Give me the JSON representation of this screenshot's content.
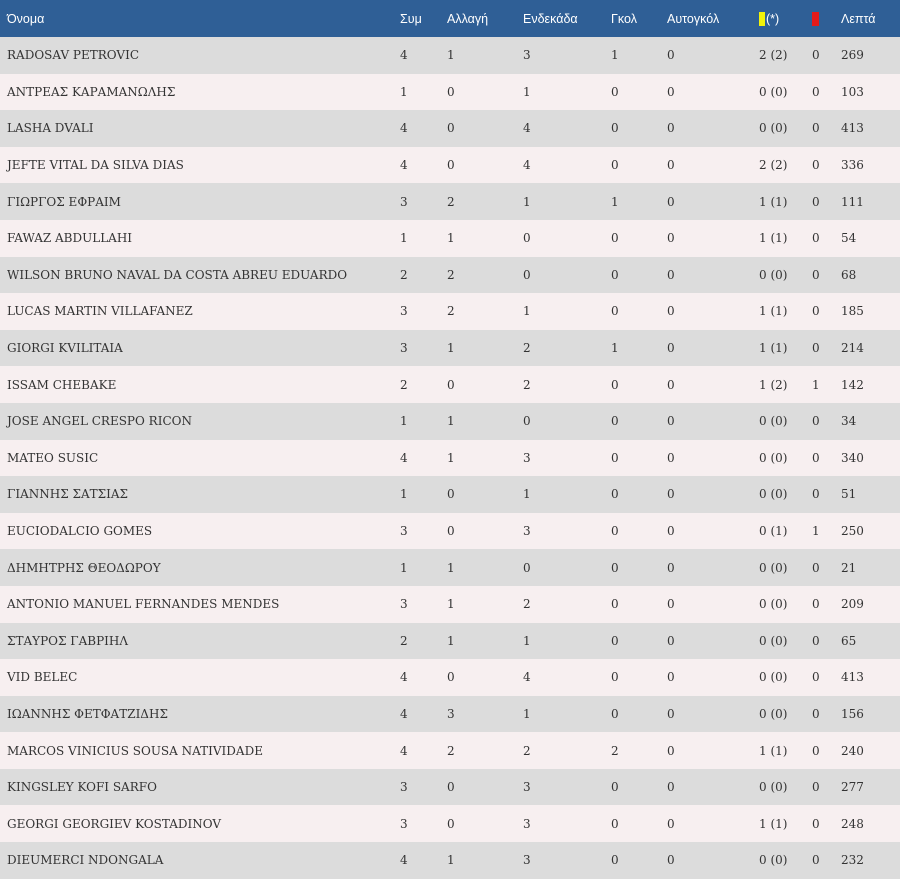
{
  "colors": {
    "header_bg": "#2f5f96",
    "row_even": "#dcdcdc",
    "row_odd": "#f7eff0",
    "yellow_card": "#f2f20a",
    "red_card": "#e41a1a"
  },
  "header": {
    "name": "Όνομα",
    "apps": "Συμ",
    "sub": "Αλλαγή",
    "start": "Ενδεκάδα",
    "goals": "Γκολ",
    "own_goals": "Αυτογκόλ",
    "yellow_suffix": "(*)",
    "yellow_icon": "yellow-card-icon",
    "red_icon": "red-card-icon",
    "minutes": "Λεπτά"
  },
  "rows": [
    {
      "name": "RADOSAV PETROVIC",
      "apps": "4",
      "sub": "1",
      "start": "3",
      "goals": "1",
      "own": "0",
      "yellow": "2 (2)",
      "red": "0",
      "min": "269"
    },
    {
      "name": "ΑΝΤΡΕΑΣ ΚΑΡΑΜΑΝΩΛΗΣ",
      "apps": "1",
      "sub": "0",
      "start": "1",
      "goals": "0",
      "own": "0",
      "yellow": "0 (0)",
      "red": "0",
      "min": "103"
    },
    {
      "name": "LASHA DVALI",
      "apps": "4",
      "sub": "0",
      "start": "4",
      "goals": "0",
      "own": "0",
      "yellow": "0 (0)",
      "red": "0",
      "min": "413"
    },
    {
      "name": "JEFTE VITAL DA SILVA DIAS",
      "apps": "4",
      "sub": "0",
      "start": "4",
      "goals": "0",
      "own": "0",
      "yellow": "2 (2)",
      "red": "0",
      "min": "336"
    },
    {
      "name": "ΓΙΩΡΓΟΣ ΕΦΡΑΙΜ",
      "apps": "3",
      "sub": "2",
      "start": "1",
      "goals": "1",
      "own": "0",
      "yellow": "1 (1)",
      "red": "0",
      "min": "111"
    },
    {
      "name": "FAWAZ ABDULLAHI",
      "apps": "1",
      "sub": "1",
      "start": "0",
      "goals": "0",
      "own": "0",
      "yellow": "1 (1)",
      "red": "0",
      "min": "54"
    },
    {
      "name": "WILSON BRUNO NAVAL DA COSTA ABREU EDUARDO",
      "apps": "2",
      "sub": "2",
      "start": "0",
      "goals": "0",
      "own": "0",
      "yellow": "0 (0)",
      "red": "0",
      "min": "68"
    },
    {
      "name": "LUCAS MARTIN VILLAFANEZ",
      "apps": "3",
      "sub": "2",
      "start": "1",
      "goals": "0",
      "own": "0",
      "yellow": "1 (1)",
      "red": "0",
      "min": "185"
    },
    {
      "name": "GIORGI KVILITAIA",
      "apps": "3",
      "sub": "1",
      "start": "2",
      "goals": "1",
      "own": "0",
      "yellow": "1 (1)",
      "red": "0",
      "min": "214"
    },
    {
      "name": "ISSAM CHEBAKE",
      "apps": "2",
      "sub": "0",
      "start": "2",
      "goals": "0",
      "own": "0",
      "yellow": "1 (2)",
      "red": "1",
      "min": "142"
    },
    {
      "name": "JOSE ANGEL CRESPO RICON",
      "apps": "1",
      "sub": "1",
      "start": "0",
      "goals": "0",
      "own": "0",
      "yellow": "0 (0)",
      "red": "0",
      "min": "34"
    },
    {
      "name": "MATEO SUSIC",
      "apps": "4",
      "sub": "1",
      "start": "3",
      "goals": "0",
      "own": "0",
      "yellow": "0 (0)",
      "red": "0",
      "min": "340"
    },
    {
      "name": "ΓΙΑΝΝΗΣ ΣΑΤΣΙΑΣ",
      "apps": "1",
      "sub": "0",
      "start": "1",
      "goals": "0",
      "own": "0",
      "yellow": "0 (0)",
      "red": "0",
      "min": "51"
    },
    {
      "name": "EUCIODALCIO GOMES",
      "apps": "3",
      "sub": "0",
      "start": "3",
      "goals": "0",
      "own": "0",
      "yellow": "0 (1)",
      "red": "1",
      "min": "250"
    },
    {
      "name": "ΔΗΜΗΤΡΗΣ ΘΕΟΔΩΡΟΥ",
      "apps": "1",
      "sub": "1",
      "start": "0",
      "goals": "0",
      "own": "0",
      "yellow": "0 (0)",
      "red": "0",
      "min": "21"
    },
    {
      "name": "ANTONIO MANUEL FERNANDES MENDES",
      "apps": "3",
      "sub": "1",
      "start": "2",
      "goals": "0",
      "own": "0",
      "yellow": "0 (0)",
      "red": "0",
      "min": "209"
    },
    {
      "name": "ΣΤΑΥΡΟΣ ΓΑΒΡΙΗΛ",
      "apps": "2",
      "sub": "1",
      "start": "1",
      "goals": "0",
      "own": "0",
      "yellow": "0 (0)",
      "red": "0",
      "min": "65"
    },
    {
      "name": "VID BELEC",
      "apps": "4",
      "sub": "0",
      "start": "4",
      "goals": "0",
      "own": "0",
      "yellow": "0 (0)",
      "red": "0",
      "min": "413"
    },
    {
      "name": "ΙΩΑΝΝΗΣ ΦΕΤΦΑΤΖΙΔΗΣ",
      "apps": "4",
      "sub": "3",
      "start": "1",
      "goals": "0",
      "own": "0",
      "yellow": "0 (0)",
      "red": "0",
      "min": "156"
    },
    {
      "name": "MARCOS VINICIUS SOUSA NATIVIDADE",
      "apps": "4",
      "sub": "2",
      "start": "2",
      "goals": "2",
      "own": "0",
      "yellow": "1 (1)",
      "red": "0",
      "min": "240"
    },
    {
      "name": "KINGSLEY KOFI SARFO",
      "apps": "3",
      "sub": "0",
      "start": "3",
      "goals": "0",
      "own": "0",
      "yellow": "0 (0)",
      "red": "0",
      "min": "277"
    },
    {
      "name": "GEORGI GEORGIEV KOSTADINOV",
      "apps": "3",
      "sub": "0",
      "start": "3",
      "goals": "0",
      "own": "0",
      "yellow": "1 (1)",
      "red": "0",
      "min": "248"
    },
    {
      "name": "DIEUMERCI NDONGALA",
      "apps": "4",
      "sub": "1",
      "start": "3",
      "goals": "0",
      "own": "0",
      "yellow": "0 (0)",
      "red": "0",
      "min": "232"
    }
  ]
}
